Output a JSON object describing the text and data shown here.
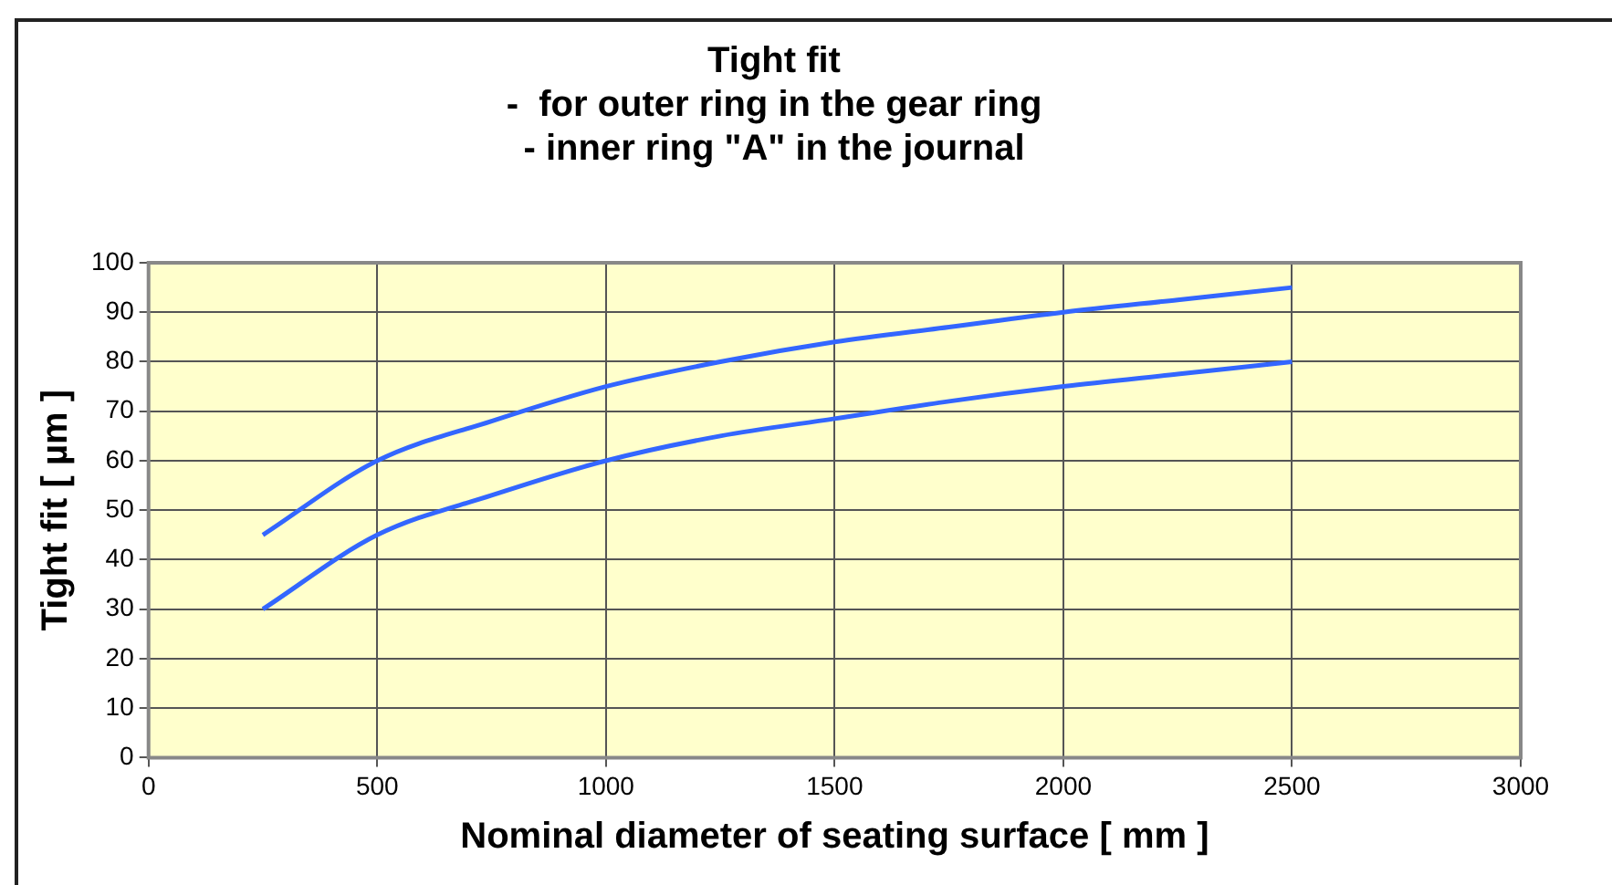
{
  "chart_data": {
    "type": "line",
    "title": "Tight fit",
    "subtitle": "-  for outer ring in the gear ring\n- inner ring \"A\" in the journal",
    "xlabel": "Nominal diameter of seating surface [ mm ]",
    "ylabel": "Tight fit [ µm ]",
    "x": [
      250,
      500,
      750,
      1000,
      1250,
      1500,
      1750,
      2000,
      2250,
      2500
    ],
    "series": [
      {
        "color": "#3366ff",
        "values": [
          45,
          60,
          68,
          75,
          80,
          84,
          87,
          90,
          92.5,
          95
        ]
      },
      {
        "color": "#3366ff",
        "values": [
          30,
          45,
          53,
          60,
          65,
          68.5,
          72,
          75,
          77.5,
          80
        ]
      }
    ],
    "xlim": [
      0,
      3000
    ],
    "xticks": [
      0,
      500,
      1000,
      1500,
      2000,
      2500,
      3000
    ],
    "ylim": [
      0,
      100
    ],
    "yticks": [
      0,
      10,
      20,
      30,
      40,
      50,
      60,
      70,
      80,
      90,
      100
    ],
    "grid": true,
    "legend": false,
    "marker": "none",
    "line_style": "solid"
  }
}
